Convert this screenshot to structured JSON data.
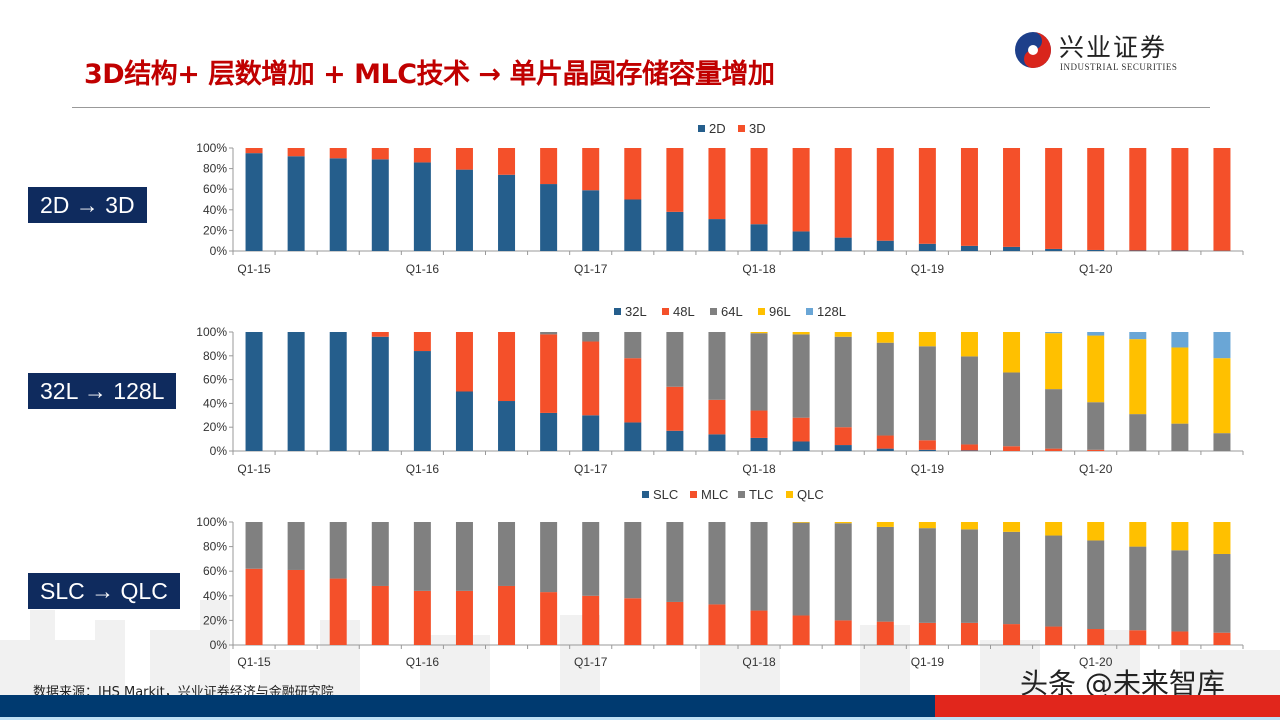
{
  "header": {
    "title": "3D结构+ 层数增加 + MLC技术 → 单片晶圆存储容量增加",
    "logo_cn": "兴业证券",
    "logo_en": "INDUSTRIAL SECURITIES"
  },
  "tags": [
    "2D → 3D",
    "32L → 128L",
    "SLC → QLC"
  ],
  "footer": {
    "source": "数据来源：IHS Markit，兴业证券经济与金融研究院",
    "watermark": "头条 @未来智库"
  },
  "colors": {
    "title": "#c00000",
    "tag_bg": "#0f2b5e",
    "footer_blue": "#003a70",
    "footer_red": "#e1261c"
  },
  "chart_data": [
    {
      "type": "bar",
      "stacked": true,
      "categories": [
        "Q1-15",
        "Q2-15",
        "Q3-15",
        "Q4-15",
        "Q1-16",
        "Q2-16",
        "Q3-16",
        "Q4-16",
        "Q1-17",
        "Q2-17",
        "Q3-17",
        "Q4-17",
        "Q1-18",
        "Q2-18",
        "Q3-18",
        "Q4-18",
        "Q1-19",
        "Q2-19",
        "Q3-19",
        "Q4-19",
        "Q1-20",
        "Q2-20",
        "Q3-20",
        "Q4-20"
      ],
      "tick_labels": [
        "Q1-15",
        "Q1-16",
        "Q1-17",
        "Q1-18",
        "Q1-19",
        "Q1-20"
      ],
      "yticks": [
        "0%",
        "20%",
        "40%",
        "60%",
        "80%",
        "100%"
      ],
      "ylim": [
        0,
        100
      ],
      "legend": "top",
      "series": [
        {
          "name": "2D",
          "color": "#255e8c",
          "values": [
            95,
            92,
            90,
            89,
            86,
            79,
            74,
            65,
            59,
            50,
            38,
            31,
            26,
            19,
            13,
            10,
            7,
            5,
            4,
            2,
            1,
            0.5,
            0.5,
            0.3
          ]
        },
        {
          "name": "3D",
          "color": "#f4502a",
          "values": [
            5,
            8,
            10,
            11,
            14,
            21,
            26,
            35,
            41,
            50,
            62,
            69,
            74,
            81,
            87,
            90,
            93,
            95,
            96,
            98,
            99,
            99.5,
            99.5,
            99.7
          ]
        }
      ]
    },
    {
      "type": "bar",
      "stacked": true,
      "categories": [
        "Q1-15",
        "Q2-15",
        "Q3-15",
        "Q4-15",
        "Q1-16",
        "Q2-16",
        "Q3-16",
        "Q4-16",
        "Q1-17",
        "Q2-17",
        "Q3-17",
        "Q4-17",
        "Q1-18",
        "Q2-18",
        "Q3-18",
        "Q4-18",
        "Q1-19",
        "Q2-19",
        "Q3-19",
        "Q4-19",
        "Q1-20",
        "Q2-20",
        "Q3-20",
        "Q4-20"
      ],
      "tick_labels": [
        "Q1-15",
        "Q1-16",
        "Q1-17",
        "Q1-18",
        "Q1-19",
        "Q1-20"
      ],
      "yticks": [
        "0%",
        "20%",
        "40%",
        "60%",
        "80%",
        "100%"
      ],
      "ylim": [
        0,
        100
      ],
      "legend": "top",
      "series": [
        {
          "name": "32L",
          "color": "#255e8c",
          "values": [
            100,
            100,
            100,
            96,
            84,
            50,
            42,
            32,
            30,
            24,
            17,
            14,
            11,
            8,
            5,
            2,
            1,
            0.5,
            0,
            0,
            0,
            0,
            0,
            0
          ]
        },
        {
          "name": "48L",
          "color": "#f4502a",
          "values": [
            0,
            0,
            0,
            4,
            16,
            50,
            58,
            66,
            62,
            54,
            37,
            29,
            23,
            20,
            15,
            11,
            8,
            5,
            4,
            2,
            1,
            0,
            0,
            0
          ]
        },
        {
          "name": "64L",
          "color": "#808080",
          "values": [
            0,
            0,
            0,
            0,
            0,
            0,
            0,
            2,
            8,
            22,
            46,
            57,
            65,
            70,
            76,
            78,
            79,
            74,
            62,
            50,
            40,
            31,
            23,
            15
          ]
        },
        {
          "name": "96L",
          "color": "#ffc000",
          "values": [
            0,
            0,
            0,
            0,
            0,
            0,
            0,
            0,
            0,
            0,
            0,
            0,
            1,
            2,
            4,
            9,
            12,
            20.5,
            34,
            47,
            56,
            63,
            64,
            63
          ]
        },
        {
          "name": "128L",
          "color": "#6aa6d6",
          "values": [
            0,
            0,
            0,
            0,
            0,
            0,
            0,
            0,
            0,
            0,
            0,
            0,
            0,
            0,
            0,
            0,
            0,
            0,
            0,
            1,
            3,
            6,
            13,
            22
          ]
        }
      ]
    },
    {
      "type": "bar",
      "stacked": true,
      "categories": [
        "Q1-15",
        "Q2-15",
        "Q3-15",
        "Q4-15",
        "Q1-16",
        "Q2-16",
        "Q3-16",
        "Q4-16",
        "Q1-17",
        "Q2-17",
        "Q3-17",
        "Q4-17",
        "Q1-18",
        "Q2-18",
        "Q3-18",
        "Q4-18",
        "Q1-19",
        "Q2-19",
        "Q3-19",
        "Q4-19",
        "Q1-20",
        "Q2-20",
        "Q3-20",
        "Q4-20"
      ],
      "tick_labels": [
        "Q1-15",
        "Q1-16",
        "Q1-17",
        "Q1-18",
        "Q1-19",
        "Q1-20"
      ],
      "yticks": [
        "0%",
        "20%",
        "40%",
        "60%",
        "80%",
        "100%"
      ],
      "ylim": [
        0,
        100
      ],
      "legend": "top",
      "series": [
        {
          "name": "SLC",
          "color": "#255e8c",
          "values": [
            0,
            0,
            0,
            0,
            0,
            0,
            0,
            0,
            0,
            0,
            0,
            0,
            0,
            0,
            0,
            0,
            0,
            0,
            0,
            0,
            0,
            0,
            0,
            0
          ]
        },
        {
          "name": "MLC",
          "color": "#f4502a",
          "values": [
            62,
            61,
            54,
            48,
            44,
            44,
            48,
            43,
            40,
            38,
            35,
            33,
            28,
            24,
            20,
            19,
            18,
            18,
            17,
            15,
            13,
            12,
            11,
            10
          ]
        },
        {
          "name": "TLC",
          "color": "#808080",
          "values": [
            38,
            39,
            46,
            52,
            56,
            56,
            52,
            57,
            60,
            62,
            65,
            67,
            72,
            75.5,
            79,
            77,
            77,
            76,
            75,
            74,
            72,
            68,
            66,
            64
          ]
        },
        {
          "name": "QLC",
          "color": "#ffc000",
          "values": [
            0,
            0,
            0,
            0,
            0,
            0,
            0,
            0,
            0,
            0,
            0,
            0,
            0,
            0.5,
            1,
            4,
            5,
            6,
            8,
            11,
            15,
            20,
            23,
            26
          ]
        }
      ]
    }
  ]
}
